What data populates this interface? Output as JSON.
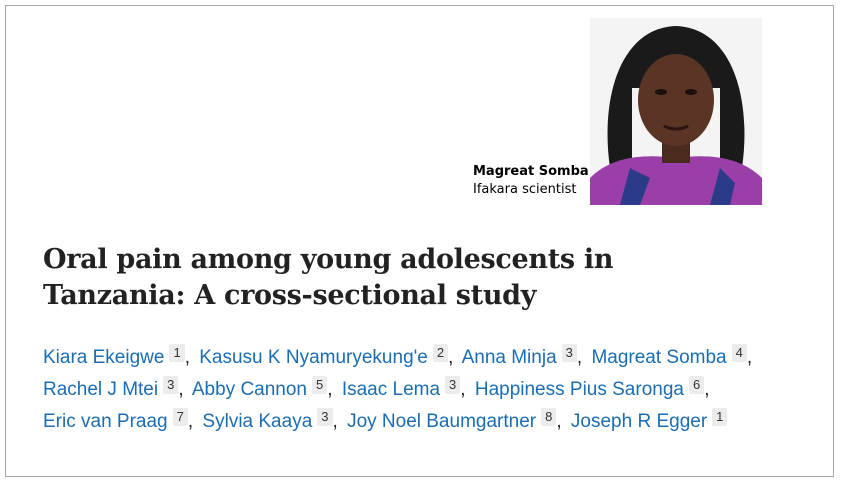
{
  "profile": {
    "name": "Magreat Somba",
    "role": "Ifakara scientist"
  },
  "article": {
    "title": "Oral pain among young adolescents in Tanzania: A cross-sectional study",
    "authors": [
      {
        "name": "Kiara Ekeigwe",
        "affiliation": "1",
        "separator": ","
      },
      {
        "name": "Kasusu K Nyamuryekung'e",
        "affiliation": "2",
        "separator": ","
      },
      {
        "name": "Anna Minja",
        "affiliation": "3",
        "separator": ","
      },
      {
        "name": "Magreat Somba",
        "affiliation": "4",
        "separator": ","
      },
      {
        "name": "Rachel J Mtei",
        "affiliation": "3",
        "separator": ","
      },
      {
        "name": "Abby Cannon",
        "affiliation": "5",
        "separator": ","
      },
      {
        "name": "Isaac Lema",
        "affiliation": "3",
        "separator": ","
      },
      {
        "name": "Happiness Pius Saronga",
        "affiliation": "6",
        "separator": ","
      },
      {
        "name": "Eric van Praag",
        "affiliation": "7",
        "separator": ","
      },
      {
        "name": "Sylvia Kaaya",
        "affiliation": "3",
        "separator": ","
      },
      {
        "name": "Joy Noel Baumgartner",
        "affiliation": "8",
        "separator": ","
      },
      {
        "name": "Joseph R Egger",
        "affiliation": "1"
      }
    ]
  }
}
